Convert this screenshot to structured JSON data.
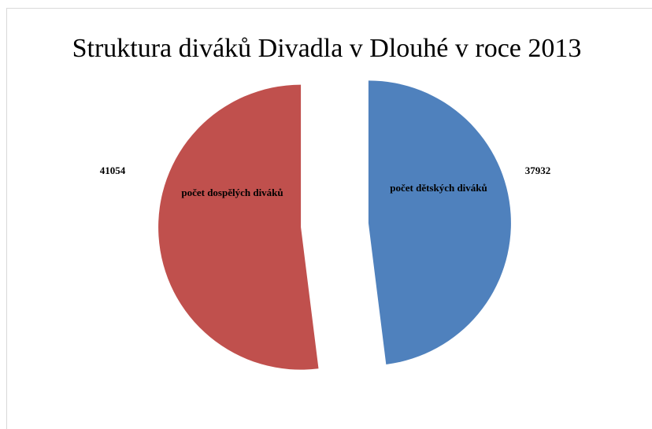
{
  "chart_data": {
    "type": "pie",
    "title": "Struktura diváků Divadla v Dlouhé v roce 2013",
    "categories": [
      "počet dětských diváků",
      "počet dospělých diváků"
    ],
    "values": [
      37932,
      41054
    ],
    "colors": [
      "#4f81bd",
      "#c0504d"
    ]
  }
}
